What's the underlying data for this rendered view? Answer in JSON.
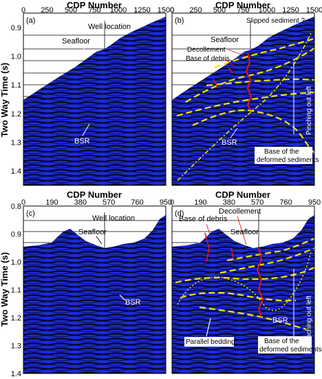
{
  "top": {
    "xaxis_title": "CDP Number",
    "xticks": [
      "0",
      "250",
      "500",
      "750",
      "1000",
      "1250",
      "1500"
    ],
    "yticks": [
      "0.9",
      "1.0",
      "1.1",
      "1.2",
      "1.3",
      "1.4"
    ]
  },
  "bottom": {
    "xaxis_title": "CDP Number",
    "xticks": [
      "0",
      "190",
      "380",
      "570",
      "760",
      "950"
    ],
    "yticks": [
      "0.8",
      "0.9",
      "1.0",
      "1.1",
      "1.2",
      "1.3",
      "1.4"
    ]
  },
  "ylabel": "Two Way Time (s)",
  "panels": {
    "a": {
      "label": "(a)",
      "well": "Well location",
      "seafloor": "Seafloor",
      "bsr": "BSR"
    },
    "b": {
      "label": "(b)",
      "slipped": "Slipped sediment ?",
      "seafloor": "Seafloor",
      "decollement": "Decollement",
      "debris": "Base of debris",
      "bsr": "BSR",
      "base_deformed_1": "Base of the",
      "base_deformed_2": "deformed sediments",
      "pinching": "Pinching out left"
    },
    "c": {
      "label": "(c)",
      "well": "Well location",
      "seafloor": "Seafloor",
      "bsr": "BSR"
    },
    "d": {
      "label": "(d)",
      "decollement": "Decollement",
      "debris": "Base of debris",
      "seafloor": "Seafloor",
      "bsr": "BSR",
      "parallel": "Parallel bedding",
      "base_deformed_1": "Base of the",
      "base_deformed_2": "deformed sediments",
      "pinching": "Pinching out left"
    }
  },
  "colors": {
    "seismic_bg": "#1c2bd6",
    "seismic_line": "#05072e",
    "horizon": "#f5e400",
    "fault": "#e01818",
    "frame": "#000000"
  }
}
